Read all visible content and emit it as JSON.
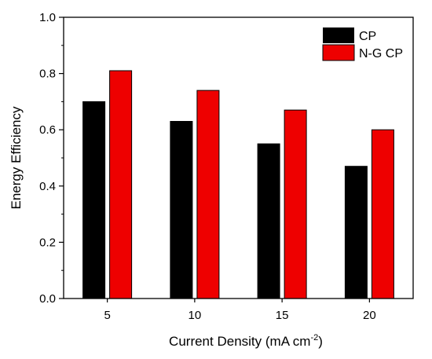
{
  "chart_data": {
    "type": "bar",
    "categories": [
      "5",
      "10",
      "15",
      "20"
    ],
    "series": [
      {
        "name": "CP",
        "values": [
          0.7,
          0.63,
          0.55,
          0.47
        ],
        "color": "#000000"
      },
      {
        "name": "N-G CP",
        "values": [
          0.81,
          0.74,
          0.67,
          0.6
        ],
        "color": "#ee0000"
      }
    ],
    "xlabel": "Current Density (mA cm",
    "xlabel_superscript": "-2",
    "xlabel_suffix": ")",
    "ylabel": "Energy Efficiency",
    "ylim": [
      0,
      1.0
    ],
    "yticks": [
      "0.0",
      "0.2",
      "0.4",
      "0.6",
      "0.8",
      "1.0"
    ],
    "legend_position": "top-right",
    "grid": false
  }
}
